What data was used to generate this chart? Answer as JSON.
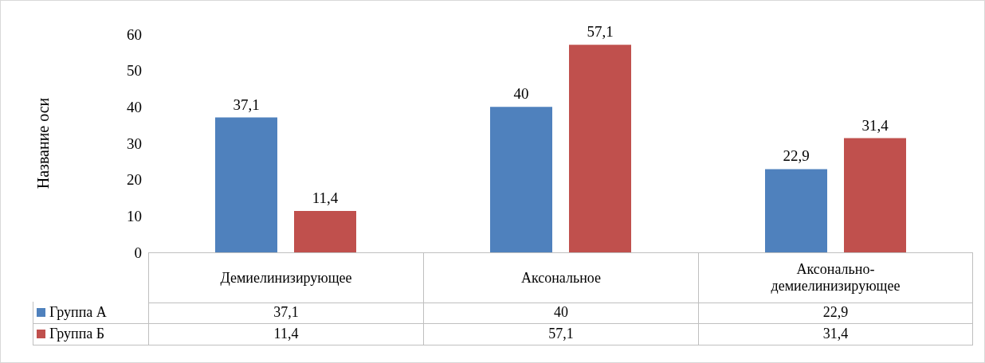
{
  "chart_data": {
    "type": "bar",
    "ylabel": "Название оси",
    "categories": [
      "Демиелинизирующее",
      "Аксональное",
      "Аксонально-демиелинизирующее"
    ],
    "series": [
      {
        "name": "Группа А",
        "color": "#4f81bd",
        "values": [
          37.1,
          40,
          22.9
        ],
        "value_labels": [
          "37,1",
          "40",
          "22,9"
        ]
      },
      {
        "name": "Группа Б",
        "color": "#c0504d",
        "values": [
          11.4,
          57.1,
          31.4
        ],
        "value_labels": [
          "11,4",
          "57,1",
          "31,4"
        ]
      }
    ],
    "ylim": [
      0,
      60
    ],
    "yticks": [
      0,
      10,
      20,
      30,
      40,
      50,
      60
    ],
    "grid": false,
    "legend": "bottom"
  }
}
